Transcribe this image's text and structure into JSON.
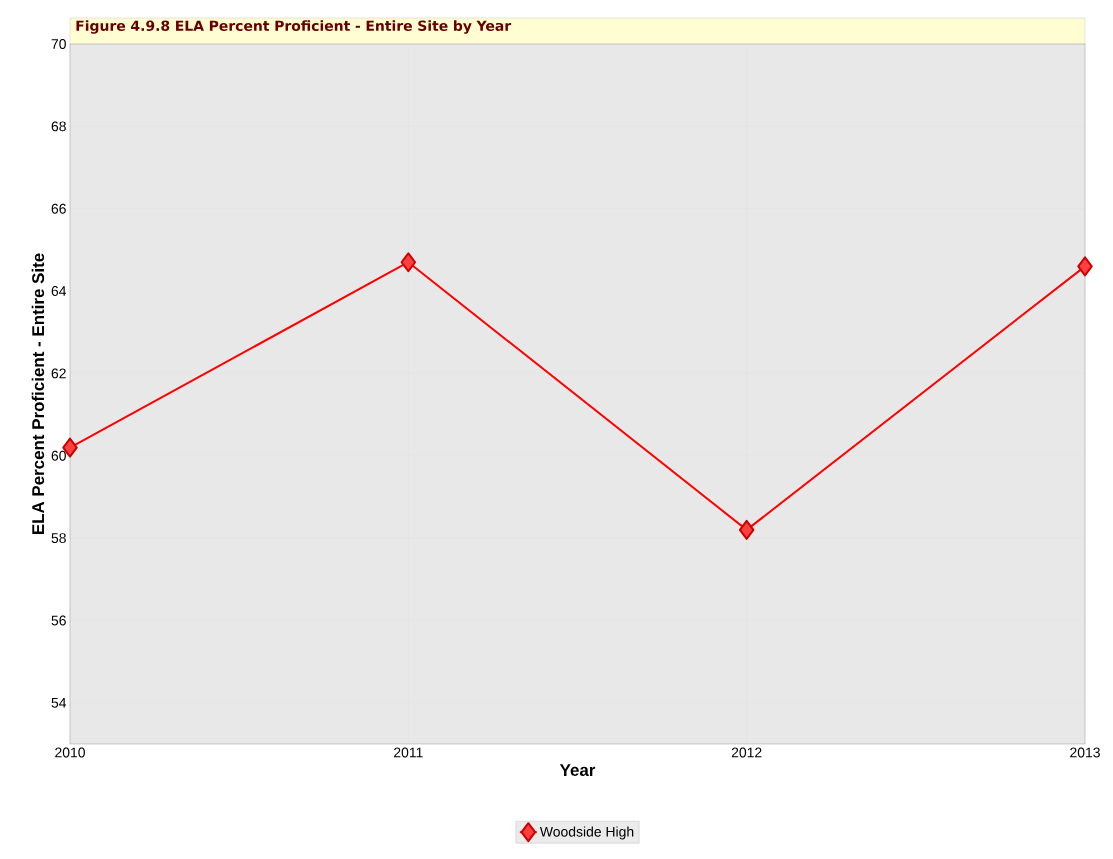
{
  "chart_data": {
    "type": "line",
    "title": "Figure 4.9.8 ELA Percent Proficient - Entire Site by Year",
    "xlabel": "Year",
    "ylabel": "ELA Percent Proficient - Entire Site",
    "x": [
      2010,
      2011,
      2012,
      2013
    ],
    "series": [
      {
        "name": "Woodside High",
        "color": "#ff0000",
        "values": [
          60.2,
          64.7,
          58.2,
          64.6
        ]
      }
    ],
    "xlim": [
      2010,
      2013
    ],
    "xticks": [
      2010,
      2011,
      2012,
      2013
    ],
    "ylim": [
      53,
      70
    ],
    "yticks": [
      54,
      56,
      58,
      60,
      62,
      64,
      66,
      68,
      70
    ],
    "grid": true,
    "legend": "bottom",
    "marker": "diamond",
    "line_style": "solid"
  }
}
